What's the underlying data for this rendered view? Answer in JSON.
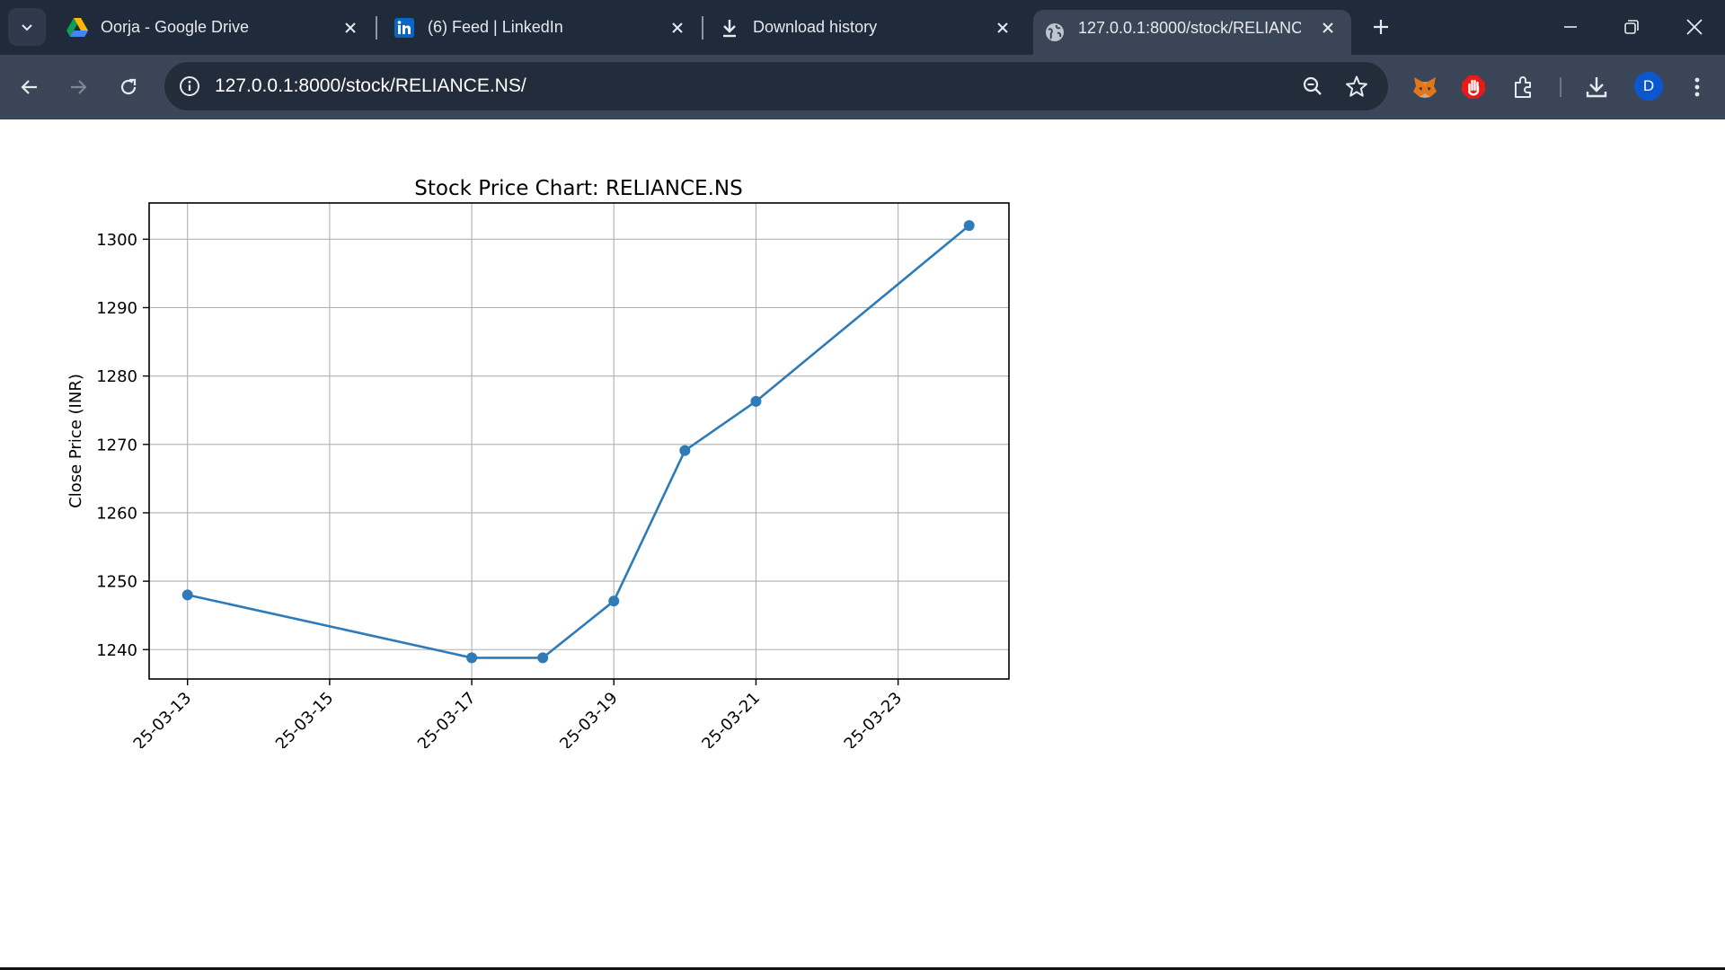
{
  "browser": {
    "tabs": [
      {
        "title": "Oorja - Google Drive",
        "icon": "google-drive-icon",
        "active": false
      },
      {
        "title": "(6) Feed | LinkedIn",
        "icon": "linkedin-icon",
        "active": false
      },
      {
        "title": "Download history",
        "icon": "download-icon",
        "active": false
      },
      {
        "title": "127.0.0.1:8000/stock/RELIANCE.NS/",
        "icon": "globe-icon",
        "active": true
      }
    ],
    "url": "127.0.0.1:8000/stock/RELIANCE.NS/",
    "profile_initial": "D",
    "colors": {
      "frame": "#1f2a3a",
      "toolbar": "#3a4658",
      "omnibox": "#222c3a",
      "avatar": "#0b57d0",
      "linkedin": "#0a66c2"
    }
  },
  "chart_data": {
    "type": "line",
    "title": "Stock Price Chart: RELIANCE.NS",
    "xlabel": "",
    "ylabel": "Close Price (INR)",
    "x": [
      "2025-03-13",
      "2025-03-17",
      "2025-03-18",
      "2025-03-19",
      "2025-03-20",
      "2025-03-21",
      "2025-03-24"
    ],
    "values": [
      1248.0,
      1238.8,
      1238.8,
      1247.1,
      1269.1,
      1276.3,
      1302.0
    ],
    "xticks": [
      "2025-03-13",
      "2025-03-15",
      "2025-03-17",
      "2025-03-19",
      "2025-03-21",
      "2025-03-23"
    ],
    "xtick_labels": [
      "25-03-13",
      "25-03-15",
      "25-03-17",
      "25-03-19",
      "25-03-21",
      "25-03-23"
    ],
    "yticks": [
      1240,
      1250,
      1260,
      1270,
      1280,
      1290,
      1300
    ],
    "xlim": [
      "2025-03-12.46",
      "2025-03-24.56"
    ],
    "ylim": [
      1235.7,
      1305.3
    ],
    "grid": true,
    "marker": "circle",
    "color": "#2e7bb8"
  }
}
